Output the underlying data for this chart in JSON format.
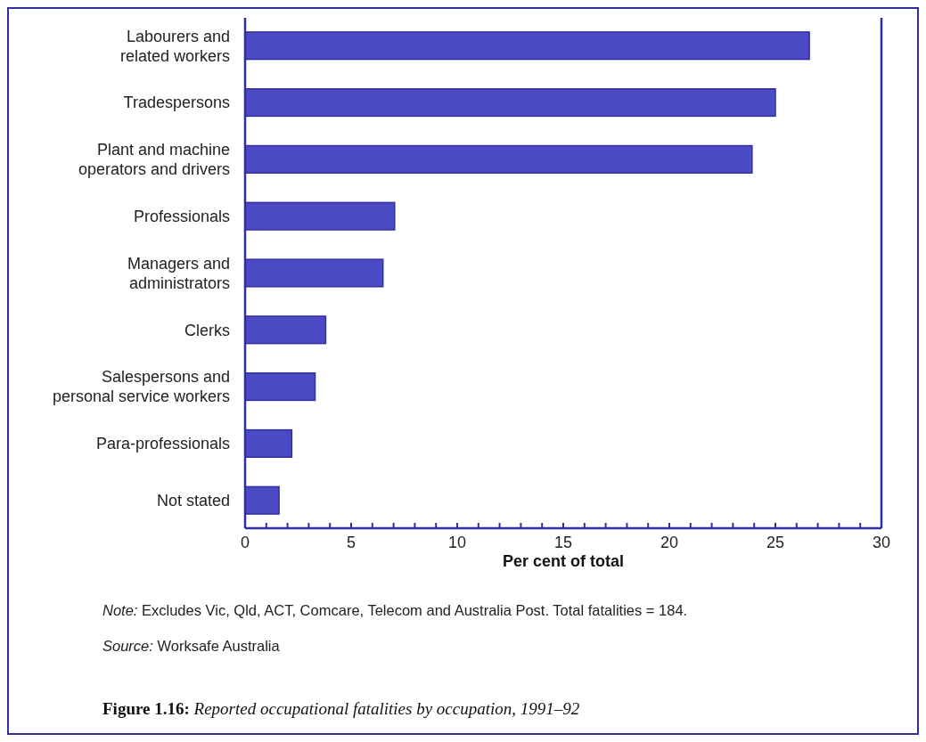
{
  "chart_data": {
    "type": "bar",
    "orientation": "horizontal",
    "title": "Figure 1.16: Reported occupational fatalities by occupation, 1991–92",
    "xlabel": "Per cent of total",
    "categories": [
      "Labourers and\nrelated workers",
      "Tradespersons",
      "Plant and machine\noperators and drivers",
      "Professionals",
      "Managers and\nadministrators",
      "Clerks",
      "Salespersons and\npersonal service workers",
      "Para-professionals",
      "Not stated"
    ],
    "values": [
      26.6,
      25.0,
      23.9,
      7.05,
      6.5,
      3.8,
      3.3,
      2.2,
      1.6
    ],
    "color": "#4b4bc6",
    "xlim": [
      0,
      30
    ],
    "xticks": [
      0,
      {
        "value": 1,
        "label": null
      },
      {
        "value": 2,
        "label": null
      },
      {
        "value": 3,
        "label": null
      },
      {
        "value": 4,
        "label": null
      },
      5,
      {
        "value": 6,
        "label": null
      },
      {
        "value": 7,
        "label": null
      },
      {
        "value": 8,
        "label": null
      },
      {
        "value": 9,
        "label": null
      },
      10,
      {
        "value": 11,
        "label": null
      },
      {
        "value": 12,
        "label": null
      },
      {
        "value": 13,
        "label": null
      },
      {
        "value": 14,
        "label": null
      },
      15,
      {
        "value": 16,
        "label": null
      },
      {
        "value": 17,
        "label": null
      },
      {
        "value": 18,
        "label": null
      },
      {
        "value": 19,
        "label": null
      },
      20,
      {
        "value": 21,
        "label": null
      },
      {
        "value": 22,
        "label": null
      },
      {
        "value": 23,
        "label": null
      },
      {
        "value": 24,
        "label": null
      },
      25,
      {
        "value": 26,
        "label": null
      },
      {
        "value": 27,
        "label": null
      },
      {
        "value": 28,
        "label": null
      },
      {
        "value": 29,
        "label": null
      },
      30
    ],
    "grid": false,
    "annotations": [
      "Note: Excludes Vic, Qld, ACT, Comcare, Telecom and Australia Post. Total fatalities = 184.",
      "Source: Worksafe Australia"
    ]
  }
}
